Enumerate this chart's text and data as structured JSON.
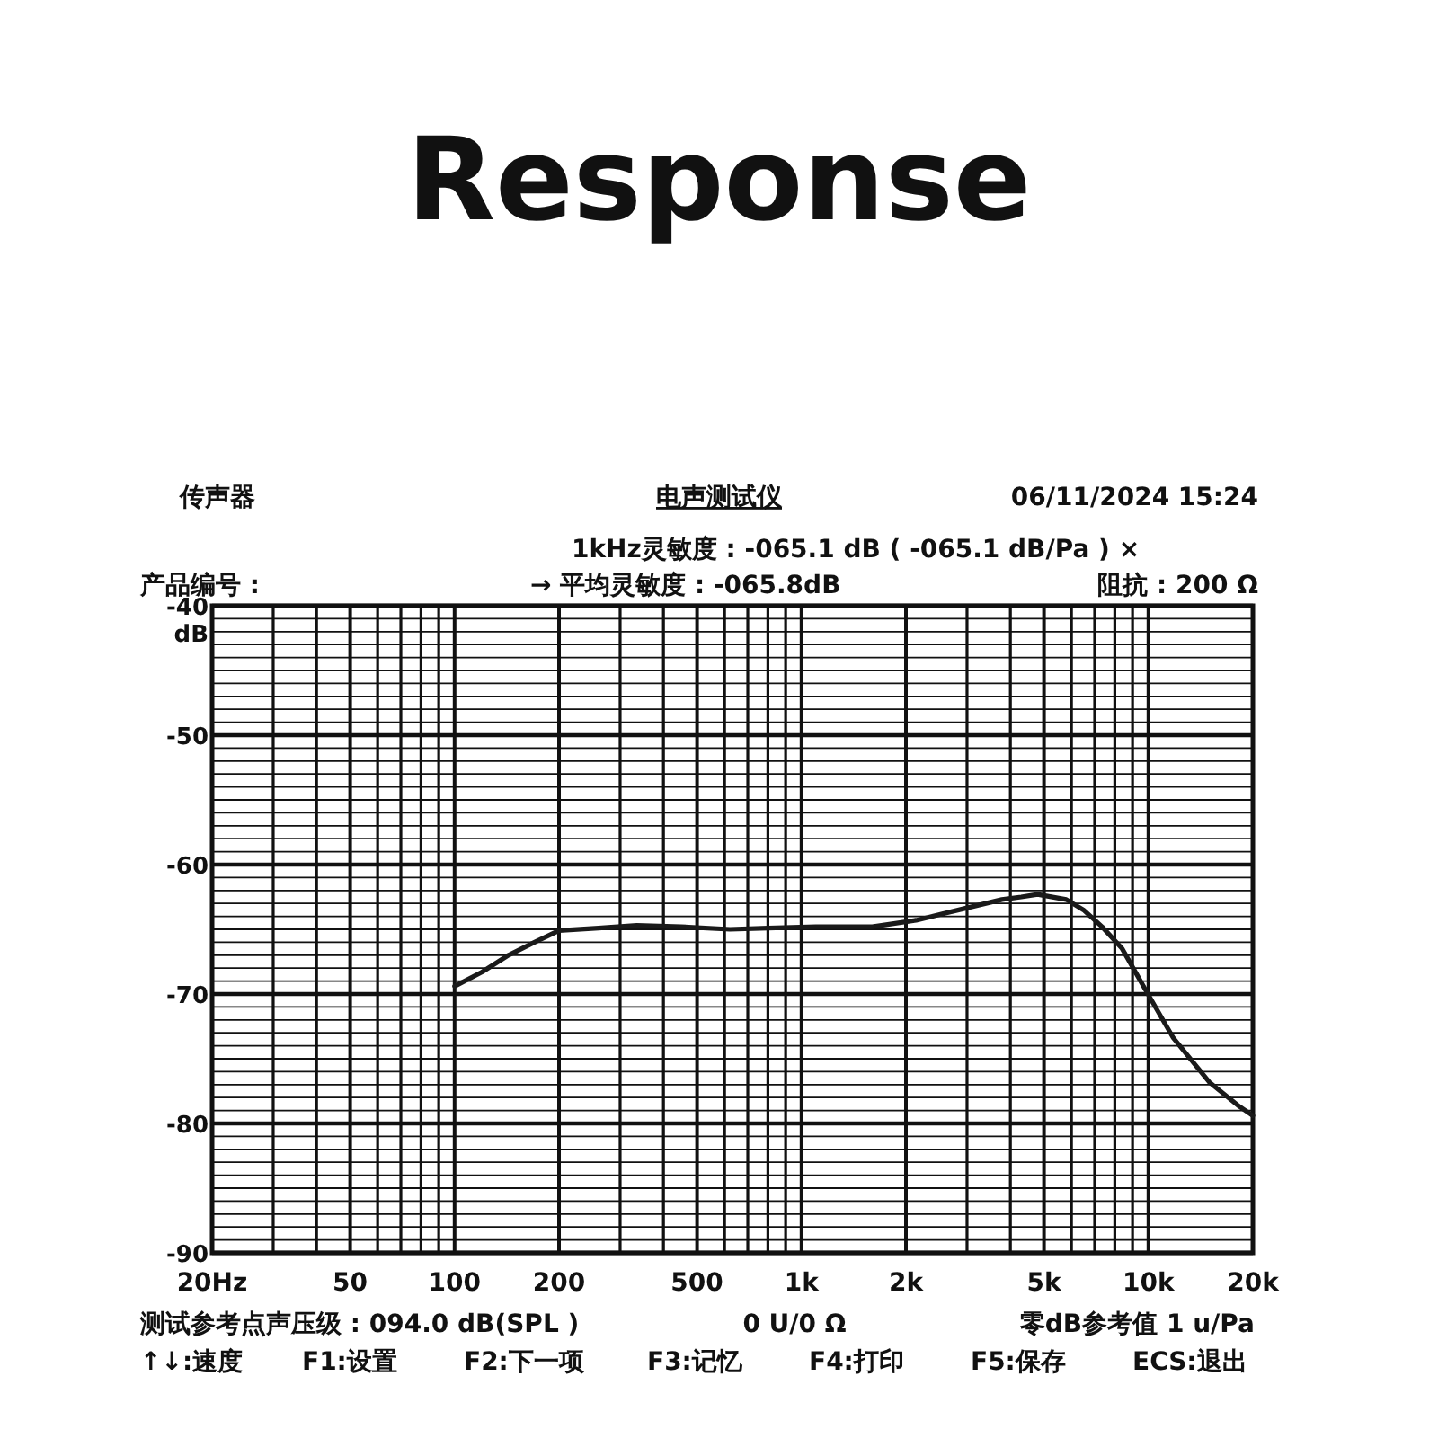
{
  "chart_data": {
    "type": "line",
    "title": "Response",
    "ylabel": "dB",
    "log": "x",
    "grid": true,
    "marker": "none",
    "line_style": "solid",
    "annotations": [
      "传声器",
      "电声测试仪",
      "06/11/2024  15:24",
      "1kHz灵敏度 : -065.1 dB ( -065.1 dB/Pa ) ×",
      "产品编号 :",
      "→ 平均灵敏度 : -065.8dB",
      "阻抗 : 200 Ω",
      "测试参考点声压级 : 094.0 dB(SPL )",
      "0 U/0 Ω",
      "零dB参考值 1 u/Pa",
      "↑↓:速度",
      "F1:设置",
      "F2:下一项",
      "F3:记忆",
      "F4:打印",
      "F5:保存",
      "ECS:退出"
    ],
    "xlim": [
      20,
      20000
    ],
    "ylim": [
      -90,
      -40
    ],
    "xticks": [
      {
        "value": 20,
        "label": "20Hz"
      },
      {
        "value": 30,
        "label": null
      },
      {
        "value": 40,
        "label": null
      },
      {
        "value": 50,
        "label": "50"
      },
      {
        "value": 60,
        "label": null
      },
      {
        "value": 70,
        "label": null
      },
      {
        "value": 80,
        "label": null
      },
      {
        "value": 90,
        "label": null
      },
      {
        "value": 100,
        "label": "100"
      },
      {
        "value": 200,
        "label": "200"
      },
      {
        "value": 300,
        "label": null
      },
      {
        "value": 400,
        "label": null
      },
      {
        "value": 500,
        "label": "500"
      },
      {
        "value": 600,
        "label": null
      },
      {
        "value": 700,
        "label": null
      },
      {
        "value": 800,
        "label": null
      },
      {
        "value": 900,
        "label": null
      },
      {
        "value": 1000,
        "label": "1k"
      },
      {
        "value": 2000,
        "label": "2k"
      },
      {
        "value": 3000,
        "label": null
      },
      {
        "value": 4000,
        "label": null
      },
      {
        "value": 5000,
        "label": "5k"
      },
      {
        "value": 6000,
        "label": null
      },
      {
        "value": 7000,
        "label": null
      },
      {
        "value": 8000,
        "label": null
      },
      {
        "value": 9000,
        "label": null
      },
      {
        "value": 10000,
        "label": "10k"
      },
      {
        "value": 20000,
        "label": "20k"
      }
    ],
    "yticks": [
      -90,
      {
        "value": -89,
        "label": null
      },
      {
        "value": -88,
        "label": null
      },
      {
        "value": -87,
        "label": null
      },
      {
        "value": -86,
        "label": null
      },
      {
        "value": -85,
        "label": null
      },
      {
        "value": -84,
        "label": null
      },
      {
        "value": -83,
        "label": null
      },
      {
        "value": -82,
        "label": null
      },
      {
        "value": -81,
        "label": null
      },
      -80,
      {
        "value": -79,
        "label": null
      },
      {
        "value": -78,
        "label": null
      },
      {
        "value": -77,
        "label": null
      },
      {
        "value": -76,
        "label": null
      },
      {
        "value": -75,
        "label": null
      },
      {
        "value": -74,
        "label": null
      },
      {
        "value": -73,
        "label": null
      },
      {
        "value": -72,
        "label": null
      },
      {
        "value": -71,
        "label": null
      },
      -70,
      {
        "value": -69,
        "label": null
      },
      {
        "value": -68,
        "label": null
      },
      {
        "value": -67,
        "label": null
      },
      {
        "value": -66,
        "label": null
      },
      {
        "value": -65,
        "label": null
      },
      {
        "value": -64,
        "label": null
      },
      {
        "value": -63,
        "label": null
      },
      {
        "value": -62,
        "label": null
      },
      {
        "value": -61,
        "label": null
      },
      -60,
      {
        "value": -59,
        "label": null
      },
      {
        "value": -58,
        "label": null
      },
      {
        "value": -57,
        "label": null
      },
      {
        "value": -56,
        "label": null
      },
      {
        "value": -55,
        "label": null
      },
      {
        "value": -54,
        "label": null
      },
      {
        "value": -53,
        "label": null
      },
      {
        "value": -52,
        "label": null
      },
      {
        "value": -51,
        "label": null
      },
      -50,
      {
        "value": -49,
        "label": null
      },
      {
        "value": -48,
        "label": null
      },
      {
        "value": -47,
        "label": null
      },
      {
        "value": -46,
        "label": null
      },
      {
        "value": -45,
        "label": null
      },
      {
        "value": -44,
        "label": null
      },
      {
        "value": -43,
        "label": null
      },
      {
        "value": -42,
        "label": null
      },
      {
        "value": -41,
        "label": null
      },
      -40
    ],
    "series": [
      {
        "color": "#1a1a1a",
        "x": [
          100,
          120,
          143,
          170,
          200,
          260,
          335,
          450,
          622,
          800,
          1100,
          1600,
          2140,
          2840,
          3780,
          4300,
          4790,
          5800,
          6500,
          7350,
          8400,
          9770,
          11800,
          14970,
          18100,
          20000
        ],
        "values": [
          -69.4,
          -68.3,
          -67.0,
          -66.0,
          -65.1,
          -64.9,
          -64.7,
          -64.8,
          -65.0,
          -64.9,
          -64.8,
          -64.8,
          -64.3,
          -63.5,
          -62.7,
          -62.5,
          -62.3,
          -62.7,
          -63.5,
          -64.8,
          -66.5,
          -69.6,
          -73.4,
          -76.8,
          -78.6,
          -79.4
        ]
      }
    ]
  }
}
